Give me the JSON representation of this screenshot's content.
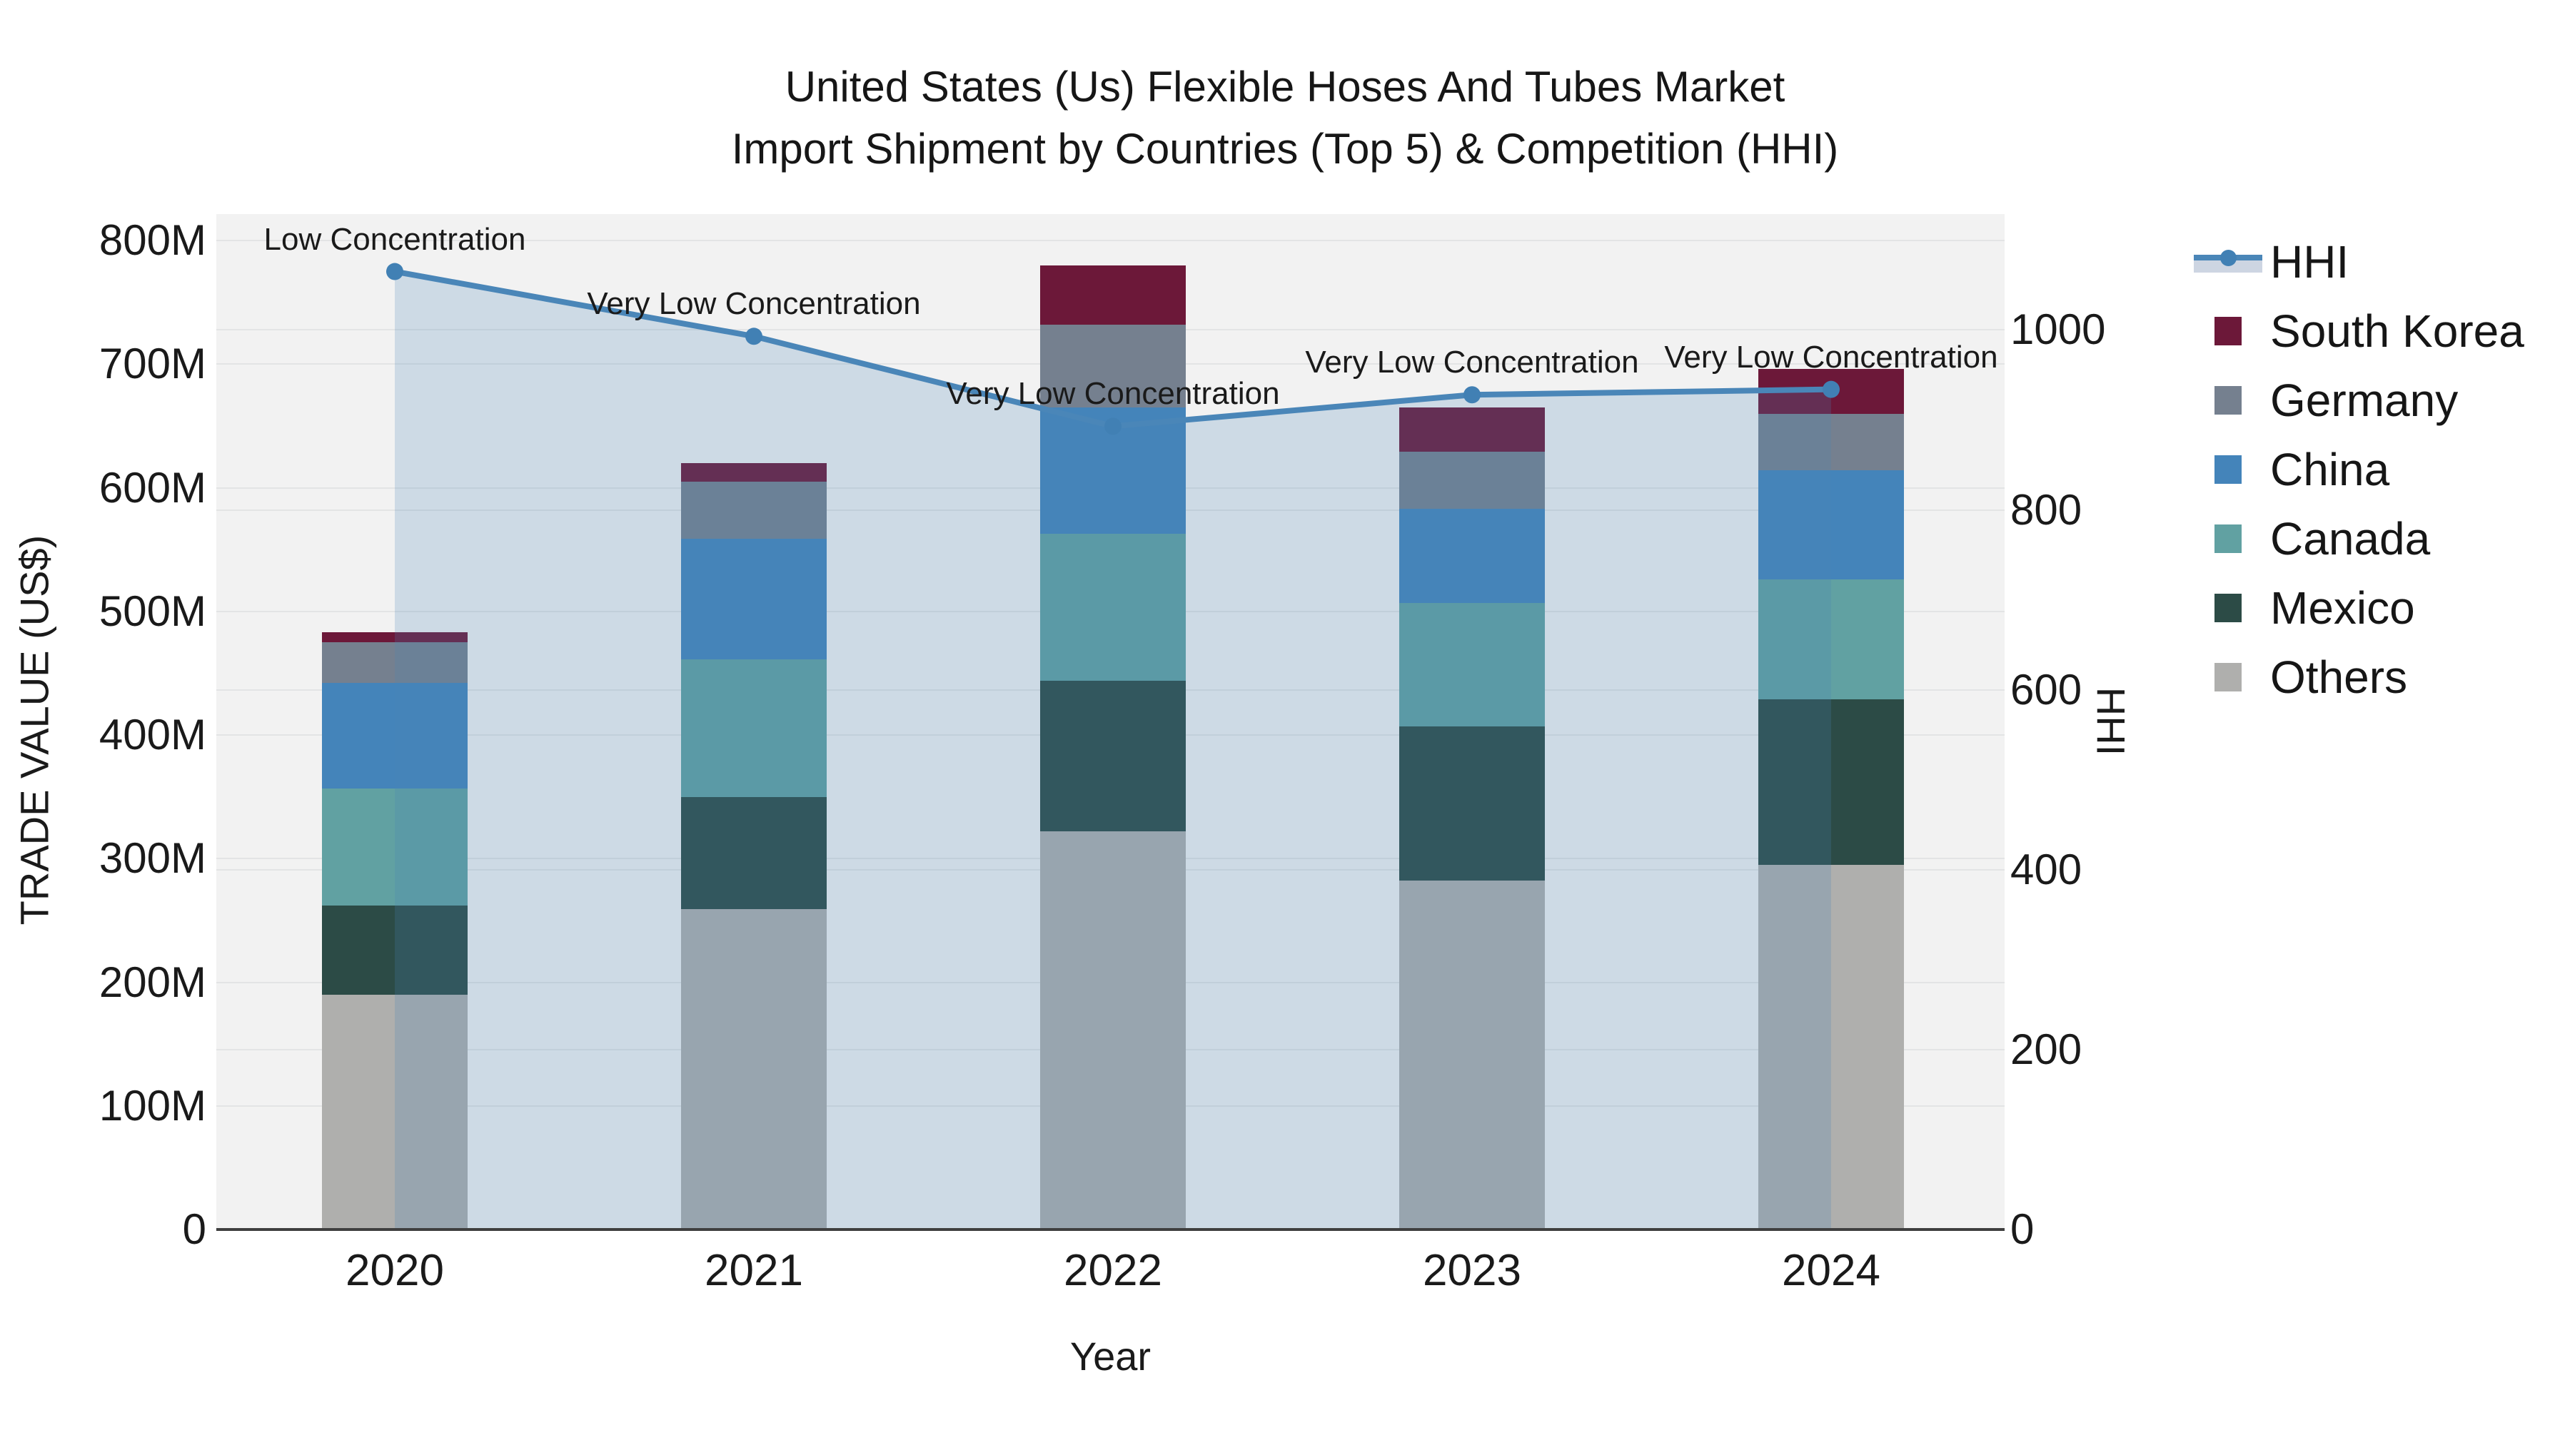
{
  "title": {
    "line1": "United States (Us) Flexible Hoses And Tubes Market",
    "line2": "Import Shipment by Countries (Top 5) & Competition (HHI)"
  },
  "axes": {
    "left": {
      "title": "TRADE VALUE (US$)",
      "ticks": [
        {
          "label": "0",
          "value": 0
        },
        {
          "label": "100M",
          "value": 100
        },
        {
          "label": "200M",
          "value": 200
        },
        {
          "label": "300M",
          "value": 300
        },
        {
          "label": "400M",
          "value": 400
        },
        {
          "label": "500M",
          "value": 500
        },
        {
          "label": "600M",
          "value": 600
        },
        {
          "label": "700M",
          "value": 700
        },
        {
          "label": "800M",
          "value": 800
        }
      ]
    },
    "right": {
      "title": "HHI",
      "ticks": [
        {
          "label": "0",
          "value": 0
        },
        {
          "label": "200",
          "value": 200
        },
        {
          "label": "400",
          "value": 400
        },
        {
          "label": "600",
          "value": 600
        },
        {
          "label": "800",
          "value": 800
        },
        {
          "label": "1000",
          "value": 1000
        }
      ]
    },
    "x": {
      "title": "Year"
    }
  },
  "legend": [
    {
      "label": "HHI",
      "type": "line"
    },
    {
      "label": "South Korea",
      "type": "swatch",
      "color": "#6c1839"
    },
    {
      "label": "Germany",
      "type": "swatch",
      "color": "#75808f"
    },
    {
      "label": "China",
      "type": "swatch",
      "color": "#4484ba"
    },
    {
      "label": "Canada",
      "type": "swatch",
      "color": "#61a1a2"
    },
    {
      "label": "Mexico",
      "type": "swatch",
      "color": "#2c4b46"
    },
    {
      "label": "Others",
      "type": "swatch",
      "color": "#afafad"
    }
  ],
  "chart_data": {
    "type": "combo",
    "subtype": "stacked-bar + line (dual axis)",
    "categories": [
      "2020",
      "2021",
      "2022",
      "2023",
      "2024"
    ],
    "bar_value_unit": "million US$",
    "stack_order_bottom_to_top": [
      "Others",
      "Mexico",
      "Canada",
      "China",
      "Germany",
      "South Korea"
    ],
    "series": [
      {
        "name": "Others",
        "color": "#afafad",
        "values": [
          190,
          259,
          322,
          282,
          295
        ]
      },
      {
        "name": "Mexico",
        "color": "#2c4b46",
        "values": [
          72,
          91,
          122,
          125,
          134
        ]
      },
      {
        "name": "Canada",
        "color": "#61a1a2",
        "values": [
          95,
          111,
          119,
          100,
          97
        ]
      },
      {
        "name": "China",
        "color": "#4484ba",
        "values": [
          85,
          98,
          102,
          76,
          88
        ]
      },
      {
        "name": "Germany",
        "color": "#75808f",
        "values": [
          33,
          46,
          67,
          46,
          46
        ]
      },
      {
        "name": "South Korea",
        "color": "#6c1839",
        "values": [
          8,
          15,
          48,
          36,
          36
        ]
      }
    ],
    "bar_totals": [
      483,
      620,
      780,
      665,
      696
    ],
    "line": {
      "name": "HHI",
      "color": "#4a86b8",
      "fill": "rgba(74,134,184,0.22)",
      "marker_color": "#4180b4",
      "values": [
        1065,
        993,
        893,
        928,
        934
      ],
      "annotations": [
        "Low Concentration",
        "Very Low Concentration",
        "Very Low Concentration",
        "Very Low Concentration",
        "Very Low Concentration"
      ]
    },
    "left_ylim": [
      0,
      800
    ],
    "right_ylim": [
      0,
      1000
    ],
    "grid": true,
    "legend_position": "right",
    "xlabel": "Year",
    "ylabel_left": "TRADE VALUE (US$)",
    "ylabel_right": "HHI",
    "plot_background": "#f2f2f2",
    "legend_band_color": "#cdd5e2"
  }
}
